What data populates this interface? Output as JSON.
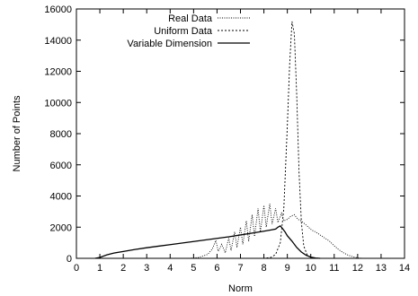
{
  "chart_data": {
    "type": "line",
    "xlabel": "Norm",
    "ylabel": "Number of Points",
    "xlim": [
      0,
      14
    ],
    "ylim": [
      0,
      16000
    ],
    "xticks": [
      0,
      1,
      2,
      3,
      4,
      5,
      6,
      7,
      8,
      9,
      10,
      11,
      12,
      13,
      14
    ],
    "yticks": [
      0,
      2000,
      4000,
      6000,
      8000,
      10000,
      12000,
      14000,
      16000
    ],
    "legend_position": "top-left",
    "grid": false,
    "series": [
      {
        "name": "Real Data",
        "style": "dotted-fine",
        "color": "#000000",
        "points": [
          [
            4.8,
            0
          ],
          [
            5.2,
            50
          ],
          [
            5.6,
            250
          ],
          [
            5.8,
            600
          ],
          [
            5.95,
            1150
          ],
          [
            6.05,
            450
          ],
          [
            6.2,
            900
          ],
          [
            6.35,
            350
          ],
          [
            6.5,
            1300
          ],
          [
            6.6,
            500
          ],
          [
            6.75,
            1700
          ],
          [
            6.85,
            700
          ],
          [
            7.0,
            2000
          ],
          [
            7.1,
            900
          ],
          [
            7.25,
            2400
          ],
          [
            7.35,
            1100
          ],
          [
            7.5,
            2800
          ],
          [
            7.6,
            1400
          ],
          [
            7.75,
            3200
          ],
          [
            7.85,
            1700
          ],
          [
            8.0,
            3400
          ],
          [
            8.1,
            2000
          ],
          [
            8.25,
            3500
          ],
          [
            8.35,
            2200
          ],
          [
            8.5,
            3200
          ],
          [
            8.6,
            2300
          ],
          [
            8.75,
            2900
          ],
          [
            8.85,
            2400
          ],
          [
            9.0,
            2500
          ],
          [
            9.15,
            2700
          ],
          [
            9.3,
            2800
          ],
          [
            9.45,
            2500
          ],
          [
            9.6,
            2400
          ],
          [
            9.75,
            2200
          ],
          [
            9.9,
            2000
          ],
          [
            10.05,
            1800
          ],
          [
            10.2,
            1700
          ],
          [
            10.4,
            1500
          ],
          [
            10.6,
            1300
          ],
          [
            10.8,
            1100
          ],
          [
            11.0,
            800
          ],
          [
            11.2,
            550
          ],
          [
            11.4,
            350
          ],
          [
            11.6,
            200
          ],
          [
            11.8,
            100
          ],
          [
            12.0,
            30
          ],
          [
            12.2,
            0
          ]
        ]
      },
      {
        "name": "Uniform Data",
        "style": "dotted",
        "color": "#000000",
        "points": [
          [
            7.5,
            0
          ],
          [
            8.0,
            0
          ],
          [
            8.3,
            60
          ],
          [
            8.5,
            250
          ],
          [
            8.7,
            1000
          ],
          [
            8.85,
            3200
          ],
          [
            9.0,
            8500
          ],
          [
            9.1,
            12500
          ],
          [
            9.2,
            15200
          ],
          [
            9.3,
            14400
          ],
          [
            9.4,
            10500
          ],
          [
            9.5,
            5500
          ],
          [
            9.6,
            2300
          ],
          [
            9.7,
            800
          ],
          [
            9.85,
            200
          ],
          [
            10.0,
            50
          ],
          [
            10.2,
            0
          ]
        ]
      },
      {
        "name": "Variable Dimension",
        "style": "solid",
        "color": "#000000",
        "points": [
          [
            0.8,
            0
          ],
          [
            1.0,
            60
          ],
          [
            1.3,
            220
          ],
          [
            1.6,
            340
          ],
          [
            2.0,
            440
          ],
          [
            2.5,
            570
          ],
          [
            3.0,
            680
          ],
          [
            3.5,
            780
          ],
          [
            4.0,
            880
          ],
          [
            4.5,
            980
          ],
          [
            5.0,
            1080
          ],
          [
            5.5,
            1180
          ],
          [
            6.0,
            1280
          ],
          [
            6.5,
            1380
          ],
          [
            7.0,
            1500
          ],
          [
            7.5,
            1620
          ],
          [
            8.0,
            1740
          ],
          [
            8.3,
            1820
          ],
          [
            8.5,
            1880
          ],
          [
            8.6,
            2000
          ],
          [
            8.7,
            2080
          ],
          [
            8.8,
            1900
          ],
          [
            8.9,
            1700
          ],
          [
            9.0,
            1450
          ],
          [
            9.2,
            1100
          ],
          [
            9.4,
            700
          ],
          [
            9.6,
            400
          ],
          [
            9.8,
            200
          ],
          [
            10.0,
            80
          ],
          [
            10.2,
            20
          ],
          [
            10.4,
            0
          ]
        ]
      }
    ]
  }
}
